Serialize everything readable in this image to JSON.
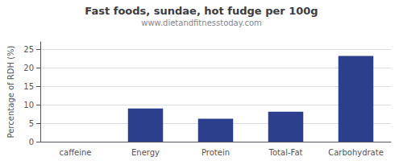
{
  "chart_data": {
    "type": "bar",
    "title": "Fast foods, sundae, hot fudge per 100g",
    "subtitle": "www.dietandfitnesstoday.com",
    "categories": [
      "caffeine",
      "Energy",
      "Protein",
      "Total-Fat",
      "Carbohydrate"
    ],
    "values": [
      0,
      9.0,
      6.2,
      8.1,
      23.2
    ],
    "color": "#2b3f8c",
    "ylabel": "Percentage of RDH (%)",
    "ylim": [
      0,
      27
    ],
    "yticks": [
      0,
      5,
      10,
      15,
      20,
      25
    ],
    "grid": true
  }
}
